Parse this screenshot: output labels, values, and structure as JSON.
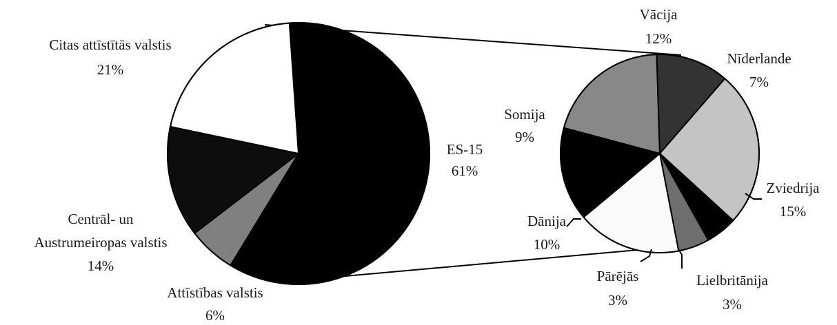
{
  "chart_data": [
    {
      "type": "pie",
      "title": "",
      "slices": [
        {
          "label": "ES-15",
          "display": "61%",
          "value": 61,
          "color": "#000000"
        },
        {
          "label": "Attīstības valstis",
          "display": "6%",
          "value": 6,
          "color": "#808080"
        },
        {
          "label": "Centrāl- un Austrumeiropas valstis",
          "label_lines": [
            "Centrāl- un",
            "Austrumeiropas valstis"
          ],
          "display": "14%",
          "value": 14,
          "color": "#0d0d0d"
        },
        {
          "label": "Citas attīstītās valstis",
          "display": "21%",
          "value": 21,
          "color": "#ffffff"
        }
      ]
    },
    {
      "type": "pie",
      "title": "",
      "slices": [
        {
          "label": "Vācija",
          "display": "12%",
          "value": 12,
          "color": "#888888"
        },
        {
          "label": "Nīderlande",
          "display": "7%",
          "value": 7,
          "color": "#333333"
        },
        {
          "label": "Zviedrija",
          "display": "15%",
          "value": 15,
          "color": "#c4c4c4"
        },
        {
          "label": "Lielbritānija",
          "display": "3%",
          "value": 3,
          "color": "#000000"
        },
        {
          "label": "Pārējās",
          "display": "3%",
          "value": 3,
          "color": "#6e6e6e"
        },
        {
          "label": "Dānija",
          "display": "10%",
          "value": 10,
          "color": "#fafafa"
        },
        {
          "label": "Somija",
          "display": "9%",
          "value": 9,
          "color": "#000000"
        }
      ]
    }
  ]
}
